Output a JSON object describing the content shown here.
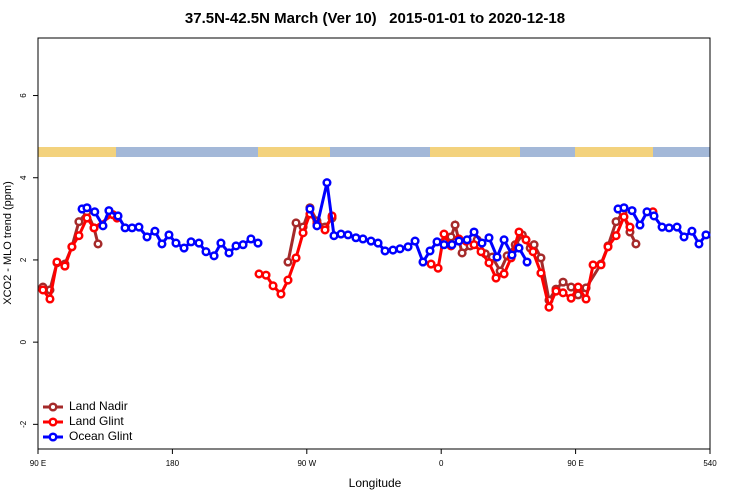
{
  "chart_data": {
    "type": "line",
    "title": "37.5N-42.5N March (Ver 10)   2015-01-01 to 2020-12-18",
    "x_label": "Longitude",
    "y_label": "XCO2 - MLO trend (ppm)",
    "xlim": [
      90,
      540
    ],
    "ylim": [
      -2.6,
      7.4
    ],
    "xticks": [
      {
        "value": 90,
        "label": "90 E"
      },
      180,
      {
        "value": 270,
        "label": "90 W"
      },
      {
        "value": 360,
        "label": "0"
      },
      {
        "value": 450,
        "label": "90 E"
      },
      540
    ],
    "yticks": [
      -2,
      0,
      2,
      4,
      6
    ],
    "legend": "bottom-left",
    "series": [
      {
        "name": "Land Nadir",
        "color": "#a52a2a",
        "x": [
          93.3,
          98,
          102.7,
          108,
          112.7,
          117.4,
          122.8,
          127.5,
          130.2,
          null,
          257.4,
          262.8,
          267.5,
          272.1,
          276.8,
          282.2,
          286.9,
          null,
          361.9,
          366.6,
          369.3,
          374,
          379.4,
          384.1,
          389.5,
          394.2,
          399.5,
          404.2,
          409.6,
          414.3,
          419.6,
          422.2,
          426.8,
          432.2,
          436.9,
          441.6,
          447,
          451.7,
          457,
          467,
          471.7,
          477.1,
          481.7,
          486.4,
          490.4
        ],
        "values": [
          1.34,
          1.27,
          1.93,
          1.9,
          2.32,
          2.93,
          3.17,
          2.78,
          2.39,
          null,
          1.95,
          2.9,
          2.8,
          3.27,
          2.95,
          2.8,
          3.02,
          null,
          2.44,
          2.56,
          2.85,
          2.17,
          2.34,
          2.49,
          2.15,
          2.07,
          1.73,
          2.1,
          2.37,
          2.61,
          2.29,
          2.37,
          2.05,
          1.02,
          1.29,
          1.46,
          1.34,
          1.15,
          1.32,
          1.9,
          2.34,
          2.93,
          3.15,
          2.68,
          2.39
        ]
      },
      {
        "name": "Land Glint",
        "color": "#ff0000",
        "x": [
          93.3,
          98,
          102.7,
          108,
          112.7,
          117.4,
          122.8,
          127.5,
          140.2,
          142.9,
          null,
          238,
          242.7,
          247.4,
          252.7,
          257.4,
          262.8,
          267.5,
          272.1,
          276.8,
          282.2,
          286.9,
          null,
          353.2,
          357.9,
          361.9,
          366.6,
          371.9,
          376.6,
          382,
          386.7,
          392,
          396.7,
          402.1,
          406.8,
          412.1,
          416.8,
          421.5,
          426.8,
          432.2,
          436.9,
          441.6,
          447,
          451.7,
          457,
          461.7,
          467,
          471.7,
          477.1,
          482.4,
          486.4,
          null,
          501.8
        ],
        "values": [
          1.27,
          1.05,
          1.95,
          1.85,
          2.32,
          2.59,
          3.02,
          2.78,
          3.1,
          3.02,
          null,
          1.66,
          1.63,
          1.37,
          1.17,
          1.51,
          2.05,
          2.66,
          3.12,
          2.88,
          2.73,
          3.07,
          null,
          1.9,
          1.8,
          2.63,
          2.34,
          2.51,
          2.46,
          2.37,
          2.2,
          1.93,
          1.56,
          1.66,
          2.05,
          2.68,
          2.49,
          2.2,
          1.68,
          0.85,
          1.24,
          1.2,
          1.07,
          1.34,
          1.05,
          1.88,
          1.88,
          2.32,
          2.59,
          3.05,
          2.8,
          null,
          3.17
        ]
      },
      {
        "name": "Ocean Glint",
        "color": "#0000ff",
        "x": [
          119.5,
          122.8,
          128,
          133.5,
          137.5,
          143.6,
          148.3,
          153,
          157.6,
          163,
          168.3,
          173,
          177.7,
          182.4,
          187.8,
          192.5,
          197.8,
          202.5,
          207.9,
          212.5,
          217.9,
          222.6,
          227.3,
          232.6,
          237.3,
          null,
          272.1,
          276.8,
          283.5,
          288.2,
          292.9,
          297.6,
          302.9,
          307.6,
          313,
          317.7,
          322.4,
          327.7,
          332.4,
          337.8,
          342.5,
          347.8,
          352.5,
          357.2,
          361.9,
          367.2,
          371.9,
          377.3,
          382,
          387.3,
          392,
          397.4,
          402.1,
          407.4,
          412.1,
          417.5,
          null,
          478.4,
          482.4,
          487.8,
          493.1,
          497.8,
          502.5,
          507.9,
          512.6,
          517.9,
          522.6,
          527.9,
          532.6,
          537.3
        ],
        "values": [
          3.24,
          3.27,
          3.17,
          2.83,
          3.2,
          3.07,
          2.78,
          2.78,
          2.8,
          2.56,
          2.7,
          2.39,
          2.61,
          2.41,
          2.29,
          2.44,
          2.41,
          2.2,
          2.1,
          2.41,
          2.17,
          2.34,
          2.37,
          2.51,
          2.41,
          null,
          3.24,
          2.83,
          3.88,
          2.59,
          2.63,
          2.61,
          2.54,
          2.51,
          2.46,
          2.41,
          2.22,
          2.24,
          2.27,
          2.32,
          2.46,
          1.95,
          2.22,
          2.44,
          2.37,
          2.37,
          2.46,
          2.49,
          2.68,
          2.41,
          2.54,
          2.07,
          2.49,
          2.12,
          2.29,
          1.95,
          null,
          3.24,
          3.27,
          3.2,
          2.85,
          3.17,
          3.07,
          2.8,
          2.78,
          2.8,
          2.56,
          2.7,
          2.39,
          2.61
        ]
      }
    ]
  }
}
